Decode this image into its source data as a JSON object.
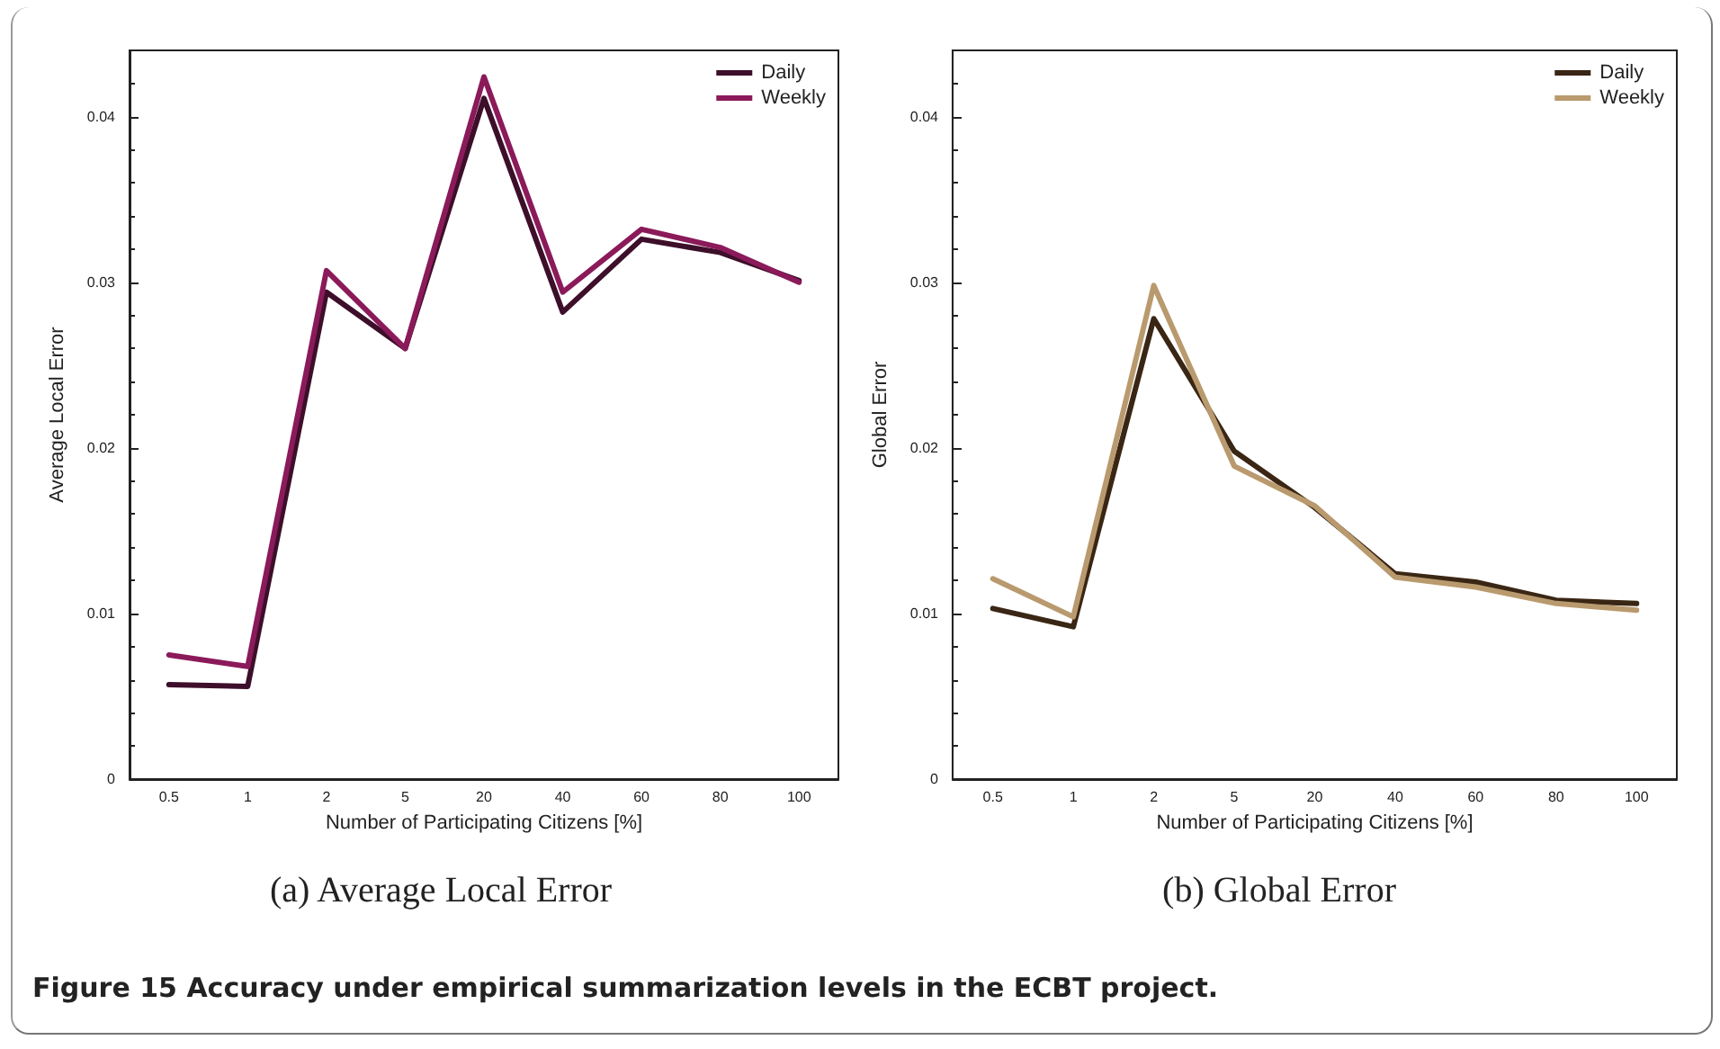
{
  "chart_data": [
    {
      "type": "line",
      "title": "(a) Average Local Error",
      "xlabel": "Number of Participating Citizens [%]",
      "ylabel": "Average Local Error",
      "categories": [
        "0.5",
        "1",
        "2",
        "5",
        "20",
        "40",
        "60",
        "80",
        "100"
      ],
      "series": [
        {
          "name": "Daily",
          "color": "#3d0f2a",
          "values": [
            0.0057,
            0.0056,
            0.0294,
            0.026,
            0.0411,
            0.0282,
            0.0326,
            0.0318,
            0.0301
          ]
        },
        {
          "name": "Weekly",
          "color": "#8b1a5a",
          "values": [
            0.0075,
            0.0068,
            0.0307,
            0.026,
            0.0424,
            0.0294,
            0.0332,
            0.0321,
            0.03
          ]
        }
      ],
      "ylim": [
        0,
        0.044
      ],
      "yticks": [
        0,
        0.01,
        0.02,
        0.03,
        0.04
      ],
      "grid": false,
      "legend": "top right",
      "marker": "none",
      "line_style": "solid",
      "annotations": [
        "Figure 15 Accuracy under empirical summarization levels in the ECBT project."
      ]
    },
    {
      "type": "line",
      "title": "(b) Global Error",
      "xlabel": "Number of Participating Citizens [%]",
      "ylabel": "Global Error",
      "categories": [
        "0.5",
        "1",
        "2",
        "5",
        "20",
        "40",
        "60",
        "80",
        "100"
      ],
      "series": [
        {
          "name": "Daily",
          "color": "#3a2614",
          "values": [
            0.0103,
            0.0092,
            0.0278,
            0.0198,
            0.0164,
            0.0124,
            0.0119,
            0.0108,
            0.0106
          ]
        },
        {
          "name": "Weekly",
          "color": "#b99a6e",
          "values": [
            0.0121,
            0.0098,
            0.0298,
            0.0189,
            0.0165,
            0.0122,
            0.0116,
            0.0106,
            0.0102
          ]
        }
      ],
      "ylim": [
        0,
        0.044
      ],
      "yticks": [
        0,
        0.01,
        0.02,
        0.03,
        0.04
      ],
      "grid": false,
      "legend": "top right",
      "marker": "none",
      "line_style": "solid"
    }
  ]
}
